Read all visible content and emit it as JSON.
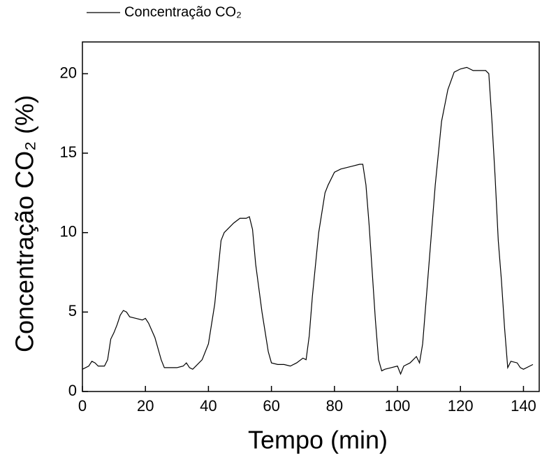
{
  "chart_data": {
    "type": "line",
    "x_label": "Tempo (min)",
    "y_label": "Concentração CO₂ (%)",
    "x": [
      0,
      2,
      3,
      4,
      5,
      7,
      8,
      9,
      10,
      11,
      12,
      13,
      14,
      15,
      17,
      19,
      20,
      21,
      23,
      25,
      26,
      28,
      30,
      32,
      33,
      34,
      35,
      36,
      38,
      40,
      42,
      43,
      44,
      45,
      46,
      48,
      50,
      52,
      53,
      54,
      55,
      57,
      59,
      60,
      62,
      64,
      66,
      68,
      70,
      71,
      72,
      73,
      75,
      77,
      78,
      80,
      82,
      84,
      86,
      88,
      89,
      90,
      91,
      92,
      93,
      94,
      95,
      96,
      98,
      100,
      101,
      102,
      104,
      105,
      106,
      107,
      108,
      110,
      112,
      114,
      116,
      118,
      120,
      122,
      124,
      126,
      128,
      129,
      130,
      131,
      132,
      133,
      134,
      135,
      136,
      138,
      139,
      140,
      142,
      143
    ],
    "series": [
      {
        "name": "Concentração CO₂",
        "color": "#000000",
        "values": [
          1.4,
          1.6,
          1.9,
          1.8,
          1.6,
          1.6,
          2.0,
          3.3,
          3.7,
          4.2,
          4.8,
          5.1,
          5.0,
          4.7,
          4.6,
          4.5,
          4.6,
          4.3,
          3.4,
          2.0,
          1.5,
          1.5,
          1.5,
          1.6,
          1.8,
          1.5,
          1.4,
          1.6,
          2.0,
          3.0,
          5.5,
          7.5,
          9.5,
          10.0,
          10.2,
          10.6,
          10.9,
          10.9,
          11.0,
          10.2,
          8.0,
          5.0,
          2.5,
          1.8,
          1.7,
          1.7,
          1.6,
          1.8,
          2.1,
          2.0,
          3.5,
          6.0,
          10.0,
          12.5,
          13.0,
          13.8,
          14.0,
          14.1,
          14.2,
          14.3,
          14.3,
          13.0,
          10.5,
          7.5,
          4.5,
          2.0,
          1.3,
          1.4,
          1.5,
          1.6,
          1.1,
          1.6,
          1.8,
          2.0,
          2.2,
          1.8,
          3.0,
          8.0,
          13.0,
          17.0,
          19.0,
          20.1,
          20.3,
          20.4,
          20.2,
          20.2,
          20.2,
          20.0,
          17.0,
          13.5,
          9.5,
          7.0,
          4.0,
          1.5,
          1.9,
          1.8,
          1.5,
          1.4,
          1.6,
          1.7
        ]
      }
    ],
    "xlim": [
      0,
      145
    ],
    "ylim": [
      0,
      22
    ],
    "xticks": [
      0,
      20,
      40,
      60,
      80,
      100,
      120,
      140
    ],
    "yticks": [
      0,
      5,
      10,
      15,
      20
    ],
    "legend": "top-left"
  }
}
